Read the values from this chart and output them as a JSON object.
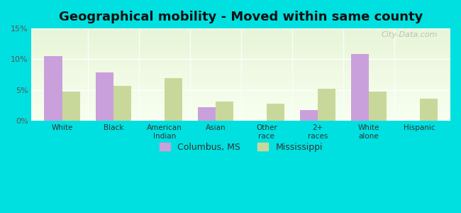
{
  "title": "Geographical mobility - Moved within same county",
  "categories": [
    "White",
    "Black",
    "American\nIndian",
    "Asian",
    "Other\nrace",
    "2+\nraces",
    "White\nalone",
    "Hispanic"
  ],
  "columbus_values": [
    10.5,
    7.9,
    0.0,
    2.2,
    0.0,
    1.8,
    10.9,
    0.0
  ],
  "mississippi_values": [
    4.7,
    5.7,
    7.0,
    3.1,
    2.8,
    5.2,
    4.7,
    3.6
  ],
  "columbus_color": "#c9a0dc",
  "mississippi_color": "#c8d89a",
  "background_outer": "#00e0e0",
  "ylim": [
    0,
    15
  ],
  "yticks": [
    0,
    5,
    10,
    15
  ],
  "ytick_labels": [
    "0%",
    "5%",
    "10%",
    "15%"
  ],
  "legend_labels": [
    "Columbus, MS",
    "Mississippi"
  ],
  "bar_width": 0.35,
  "title_fontsize": 13,
  "watermark": "City-Data.com"
}
